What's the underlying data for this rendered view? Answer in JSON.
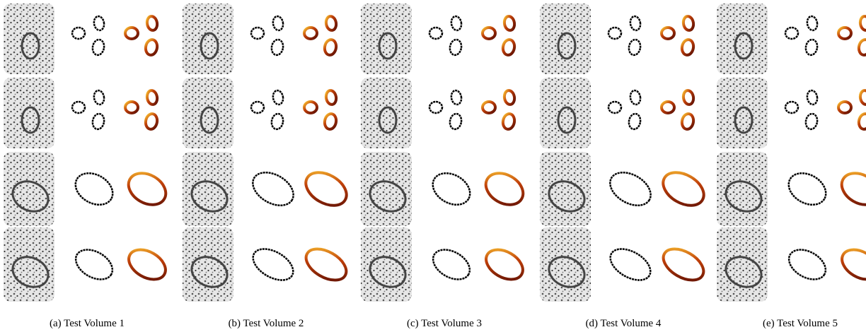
{
  "captions": [
    "(a) Test Volume 1",
    "(b) Test Volume 2",
    "(c) Test Volume 3",
    "(d) Test Volume 4",
    "(e) Test Volume 5"
  ]
}
